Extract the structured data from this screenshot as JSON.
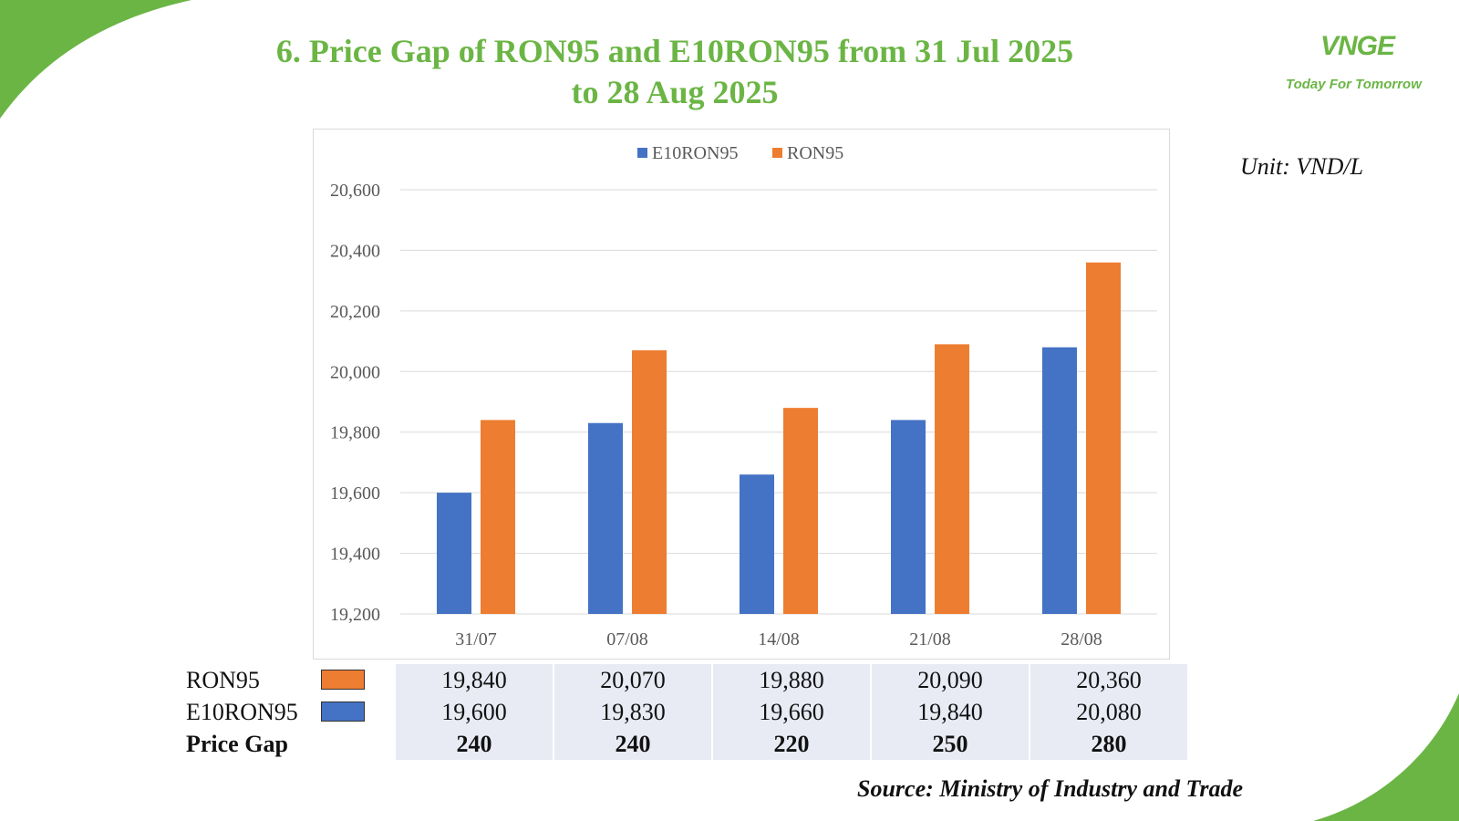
{
  "title_line1": "6. Price Gap of RON95 and E10RON95 from 31 Jul 2025",
  "title_line2": "to 28 Aug 2025",
  "logo": {
    "mark": "VNGE",
    "tagline": "Today For Tomorrow"
  },
  "unit": "Unit: VND/L",
  "source": "Source: Ministry of Industry and Trade",
  "colors": {
    "accent": "#6bb545",
    "e10": "#4472c4",
    "ron95": "#ed7d31"
  },
  "chart_data": {
    "type": "bar",
    "categories": [
      "31/07",
      "07/08",
      "14/08",
      "21/08",
      "28/08"
    ],
    "series": [
      {
        "name": "E10RON95",
        "values": [
          19600,
          19830,
          19660,
          19840,
          20080
        ],
        "color": "#4472c4"
      },
      {
        "name": "RON95",
        "values": [
          19840,
          20070,
          19880,
          20090,
          20360
        ],
        "color": "#ed7d31"
      }
    ],
    "ylim": [
      19200,
      20600
    ],
    "yticks": [
      19200,
      19400,
      19600,
      19800,
      20000,
      20200,
      20400,
      20600
    ],
    "ytick_labels": [
      "19,200",
      "19,400",
      "19,600",
      "19,800",
      "20,000",
      "20,200",
      "20,400",
      "20,600"
    ],
    "grid": true,
    "legend": "top-center"
  },
  "table": {
    "rows": [
      {
        "label": "RON95",
        "values": [
          "19,840",
          "20,070",
          "19,880",
          "20,090",
          "20,360"
        ]
      },
      {
        "label": "E10RON95",
        "values": [
          "19,600",
          "19,830",
          "19,660",
          "19,840",
          "20,080"
        ]
      },
      {
        "label": "Price Gap",
        "values": [
          "240",
          "240",
          "220",
          "250",
          "280"
        ]
      }
    ]
  }
}
